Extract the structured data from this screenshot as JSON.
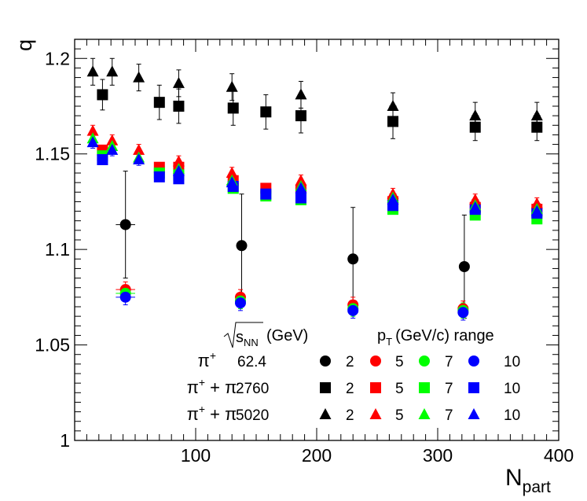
{
  "chart_data": {
    "type": "scatter",
    "xlabel": "N",
    "xlabel_sub": "part",
    "ylabel": "q",
    "xlim": [
      0,
      400
    ],
    "ylim": [
      1.0,
      1.21
    ],
    "x_major_ticks": [
      100,
      200,
      300,
      400
    ],
    "y_major_ticks": [
      1,
      1.05,
      1.1,
      1.15,
      1.2
    ],
    "x_tick_labels": [
      "100",
      "200",
      "300",
      "400"
    ],
    "y_tick_labels": [
      "1",
      "1.05",
      "1.1",
      "1.15",
      "1.2"
    ],
    "series": [
      {
        "system": "pi+ 62.4",
        "pt": "2",
        "marker": "circle",
        "color": "#000000",
        "points": [
          {
            "x": 42,
            "y": 1.113,
            "ey": 0.028,
            "ex": 8
          },
          {
            "x": 138,
            "y": 1.102,
            "ey": 0.027,
            "ex": 3
          },
          {
            "x": 230,
            "y": 1.095,
            "ey": 0.027,
            "ex": 3
          },
          {
            "x": 322,
            "y": 1.091,
            "ey": 0.027,
            "ex": 3
          }
        ]
      },
      {
        "system": "pi+ 62.4",
        "pt": "5",
        "marker": "circle",
        "color": "#ff0000",
        "points": [
          {
            "x": 42,
            "y": 1.079,
            "ey": 0.004,
            "ex": 8
          },
          {
            "x": 137,
            "y": 1.075,
            "ey": 0.004,
            "ex": 3
          },
          {
            "x": 230,
            "y": 1.071,
            "ey": 0.004,
            "ex": 3
          },
          {
            "x": 321,
            "y": 1.069,
            "ey": 0.004,
            "ex": 3
          }
        ]
      },
      {
        "system": "pi+ 62.4",
        "pt": "7",
        "marker": "circle",
        "color": "#00ff00",
        "points": [
          {
            "x": 42,
            "y": 1.077,
            "ey": 0.004,
            "ex": 8
          },
          {
            "x": 137,
            "y": 1.073,
            "ey": 0.004,
            "ex": 3
          },
          {
            "x": 230,
            "y": 1.069,
            "ey": 0.004,
            "ex": 3
          },
          {
            "x": 321,
            "y": 1.068,
            "ey": 0.004,
            "ex": 3
          }
        ]
      },
      {
        "system": "pi+ 62.4",
        "pt": "10",
        "marker": "circle",
        "color": "#0000ff",
        "points": [
          {
            "x": 42,
            "y": 1.075,
            "ey": 0.004,
            "ex": 8
          },
          {
            "x": 137,
            "y": 1.072,
            "ey": 0.004,
            "ex": 3
          },
          {
            "x": 230,
            "y": 1.068,
            "ey": 0.004,
            "ex": 3
          },
          {
            "x": 321,
            "y": 1.067,
            "ey": 0.004,
            "ex": 3
          }
        ]
      },
      {
        "system": "pi+ + pi- 2760",
        "pt": "2",
        "marker": "square",
        "color": "#000000",
        "points": [
          {
            "x": 23,
            "y": 1.181,
            "ey": 0.008,
            "ex": 2
          },
          {
            "x": 70,
            "y": 1.177,
            "ey": 0.009,
            "ex": 2
          },
          {
            "x": 86,
            "y": 1.175,
            "ey": 0.009,
            "ex": 2
          },
          {
            "x": 131,
            "y": 1.174,
            "ey": 0.009,
            "ex": 2
          },
          {
            "x": 158,
            "y": 1.172,
            "ey": 0.009,
            "ex": 2
          },
          {
            "x": 187,
            "y": 1.17,
            "ey": 0.009,
            "ex": 2
          },
          {
            "x": 263,
            "y": 1.167,
            "ey": 0.009,
            "ex": 3
          },
          {
            "x": 331,
            "y": 1.164,
            "ey": 0.007,
            "ex": 3
          },
          {
            "x": 382,
            "y": 1.164,
            "ey": 0.007,
            "ex": 3
          }
        ]
      },
      {
        "system": "pi+ + pi- 2760",
        "pt": "5",
        "marker": "square",
        "color": "#ff0000",
        "points": [
          {
            "x": 23,
            "y": 1.152,
            "ey": 0.002,
            "ex": 2
          },
          {
            "x": 70,
            "y": 1.143,
            "ey": 0.002,
            "ex": 2
          },
          {
            "x": 86,
            "y": 1.143,
            "ey": 0.002,
            "ex": 2
          },
          {
            "x": 131,
            "y": 1.136,
            "ey": 0.002,
            "ex": 2
          },
          {
            "x": 158,
            "y": 1.132,
            "ey": 0.002,
            "ex": 2
          },
          {
            "x": 187,
            "y": 1.131,
            "ey": 0.002,
            "ex": 2
          },
          {
            "x": 263,
            "y": 1.125,
            "ey": 0.002,
            "ex": 3
          },
          {
            "x": 331,
            "y": 1.122,
            "ey": 0.002,
            "ex": 3
          },
          {
            "x": 382,
            "y": 1.121,
            "ey": 0.002,
            "ex": 3
          }
        ]
      },
      {
        "system": "pi+ + pi- 2760",
        "pt": "7",
        "marker": "square",
        "color": "#00ff00",
        "points": [
          {
            "x": 23,
            "y": 1.149,
            "ey": 0.002,
            "ex": 2
          },
          {
            "x": 70,
            "y": 1.14,
            "ey": 0.002,
            "ex": 2
          },
          {
            "x": 86,
            "y": 1.139,
            "ey": 0.002,
            "ex": 2
          },
          {
            "x": 131,
            "y": 1.132,
            "ey": 0.002,
            "ex": 2
          },
          {
            "x": 158,
            "y": 1.128,
            "ey": 0.002,
            "ex": 2
          },
          {
            "x": 187,
            "y": 1.126,
            "ey": 0.002,
            "ex": 2
          },
          {
            "x": 263,
            "y": 1.121,
            "ey": 0.002,
            "ex": 3
          },
          {
            "x": 331,
            "y": 1.118,
            "ey": 0.002,
            "ex": 3
          },
          {
            "x": 382,
            "y": 1.116,
            "ey": 0.002,
            "ex": 3
          }
        ]
      },
      {
        "system": "pi+ + pi- 2760",
        "pt": "10",
        "marker": "square",
        "color": "#0000ff",
        "points": [
          {
            "x": 23,
            "y": 1.147,
            "ey": 0.002,
            "ex": 2
          },
          {
            "x": 70,
            "y": 1.138,
            "ey": 0.002,
            "ex": 2
          },
          {
            "x": 86,
            "y": 1.137,
            "ey": 0.002,
            "ex": 2
          },
          {
            "x": 131,
            "y": 1.133,
            "ey": 0.002,
            "ex": 2
          },
          {
            "x": 158,
            "y": 1.129,
            "ey": 0.002,
            "ex": 2
          },
          {
            "x": 187,
            "y": 1.127,
            "ey": 0.002,
            "ex": 2
          },
          {
            "x": 263,
            "y": 1.123,
            "ey": 0.002,
            "ex": 3
          },
          {
            "x": 331,
            "y": 1.121,
            "ey": 0.002,
            "ex": 3
          },
          {
            "x": 382,
            "y": 1.119,
            "ey": 0.002,
            "ex": 3
          }
        ]
      },
      {
        "system": "pi+ + pi- 5020",
        "pt": "2",
        "marker": "triangle",
        "color": "#000000",
        "points": [
          {
            "x": 15,
            "y": 1.193,
            "ey": 0.007,
            "ex": 2
          },
          {
            "x": 31,
            "y": 1.193,
            "ey": 0.007,
            "ex": 2
          },
          {
            "x": 53,
            "y": 1.19,
            "ey": 0.007,
            "ex": 2
          },
          {
            "x": 86,
            "y": 1.187,
            "ey": 0.007,
            "ex": 2
          },
          {
            "x": 130,
            "y": 1.185,
            "ey": 0.007,
            "ex": 2
          },
          {
            "x": 187,
            "y": 1.181,
            "ey": 0.007,
            "ex": 2
          },
          {
            "x": 263,
            "y": 1.175,
            "ey": 0.007,
            "ex": 3
          },
          {
            "x": 331,
            "y": 1.17,
            "ey": 0.007,
            "ex": 3
          },
          {
            "x": 382,
            "y": 1.17,
            "ey": 0.007,
            "ex": 3
          }
        ]
      },
      {
        "system": "pi+ + pi- 5020",
        "pt": "5",
        "marker": "triangle",
        "color": "#ff0000",
        "points": [
          {
            "x": 15,
            "y": 1.162,
            "ey": 0.003,
            "ex": 2
          },
          {
            "x": 31,
            "y": 1.157,
            "ey": 0.003,
            "ex": 2
          },
          {
            "x": 53,
            "y": 1.152,
            "ey": 0.003,
            "ex": 2
          },
          {
            "x": 86,
            "y": 1.146,
            "ey": 0.003,
            "ex": 2
          },
          {
            "x": 130,
            "y": 1.14,
            "ey": 0.003,
            "ex": 2
          },
          {
            "x": 187,
            "y": 1.136,
            "ey": 0.003,
            "ex": 2
          },
          {
            "x": 263,
            "y": 1.129,
            "ey": 0.003,
            "ex": 3
          },
          {
            "x": 331,
            "y": 1.126,
            "ey": 0.003,
            "ex": 3
          },
          {
            "x": 382,
            "y": 1.124,
            "ey": 0.003,
            "ex": 3
          }
        ]
      },
      {
        "system": "pi+ + pi- 5020",
        "pt": "7",
        "marker": "triangle",
        "color": "#00ff00",
        "points": [
          {
            "x": 15,
            "y": 1.158,
            "ey": 0.003,
            "ex": 2
          },
          {
            "x": 31,
            "y": 1.154,
            "ey": 0.003,
            "ex": 2
          },
          {
            "x": 53,
            "y": 1.148,
            "ey": 0.003,
            "ex": 2
          },
          {
            "x": 86,
            "y": 1.142,
            "ey": 0.003,
            "ex": 2
          },
          {
            "x": 130,
            "y": 1.136,
            "ey": 0.003,
            "ex": 2
          },
          {
            "x": 187,
            "y": 1.133,
            "ey": 0.003,
            "ex": 2
          },
          {
            "x": 263,
            "y": 1.127,
            "ey": 0.003,
            "ex": 3
          },
          {
            "x": 331,
            "y": 1.123,
            "ey": 0.003,
            "ex": 3
          },
          {
            "x": 382,
            "y": 1.121,
            "ey": 0.003,
            "ex": 3
          }
        ]
      },
      {
        "system": "pi+ + pi- 5020",
        "pt": "10",
        "marker": "triangle",
        "color": "#0000ff",
        "points": [
          {
            "x": 15,
            "y": 1.156,
            "ey": 0.003,
            "ex": 2
          },
          {
            "x": 31,
            "y": 1.152,
            "ey": 0.003,
            "ex": 2
          },
          {
            "x": 53,
            "y": 1.147,
            "ey": 0.003,
            "ex": 2
          },
          {
            "x": 86,
            "y": 1.141,
            "ey": 0.003,
            "ex": 2
          },
          {
            "x": 130,
            "y": 1.135,
            "ey": 0.003,
            "ex": 2
          },
          {
            "x": 187,
            "y": 1.132,
            "ey": 0.003,
            "ex": 2
          },
          {
            "x": 263,
            "y": 1.126,
            "ey": 0.003,
            "ex": 3
          },
          {
            "x": 331,
            "y": 1.122,
            "ey": 0.003,
            "ex": 3
          },
          {
            "x": 382,
            "y": 1.12,
            "ey": 0.003,
            "ex": 3
          }
        ]
      }
    ]
  },
  "legend": {
    "energy_header": "s",
    "energy_header_sub": "NN",
    "energy_header_unit": "(GeV)",
    "pt_header": "p",
    "pt_header_sub": "T",
    "pt_header_unit": "(GeV/c) range",
    "rows": [
      {
        "particle": "π",
        "particle_sup": "+",
        "particle_rest": "",
        "particle_rest_sup": "",
        "energy": "62.4",
        "marker": "circle"
      },
      {
        "particle": "π",
        "particle_sup": "+",
        "particle_rest": " + π",
        "particle_rest_sup": "-",
        "energy": "2760",
        "marker": "square"
      },
      {
        "particle": "π",
        "particle_sup": "+",
        "particle_rest": " + π",
        "particle_rest_sup": "-",
        "energy": "5020",
        "marker": "triangle"
      }
    ],
    "columns": [
      {
        "label": "2",
        "color": "#000000"
      },
      {
        "label": "5",
        "color": "#ff0000"
      },
      {
        "label": "7",
        "color": "#00ff00"
      },
      {
        "label": "10",
        "color": "#0000ff"
      }
    ]
  }
}
